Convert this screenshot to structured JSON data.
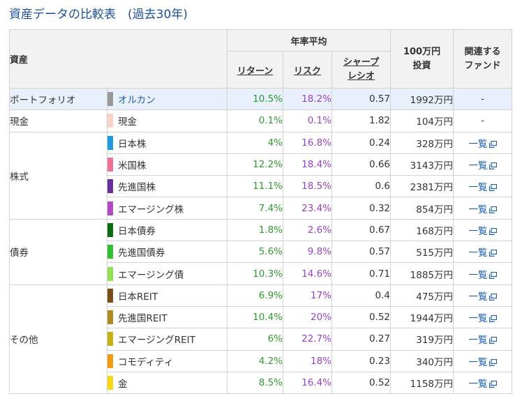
{
  "title": "資産データの比較表　(過去30年)",
  "header": {
    "asset": "資産",
    "annual_avg": "年率平均",
    "return": "リターン",
    "risk": "リスク",
    "sharpe_l1": "シャープ",
    "sharpe_l2": "レシオ",
    "invest_l1": "100万円",
    "invest_l2": "投資",
    "fund_l1": "関連する",
    "fund_l2": "ファンド"
  },
  "rows": [
    {
      "group": "ポートフォリオ",
      "name": "オルカン",
      "color": "#999999",
      "ret": "10.5%",
      "risk": "18.2%",
      "sharpe": "0.57",
      "invest": "1992万円",
      "fund": "-"
    },
    {
      "group": "現金",
      "name": "現金",
      "color": "#f8d4c8",
      "ret": "0.1%",
      "risk": "0.1%",
      "sharpe": "1.82",
      "invest": "104万円",
      "fund": "-"
    },
    {
      "group": "株式",
      "name": "日本株",
      "color": "#1e9be0",
      "ret": "4%",
      "risk": "16.8%",
      "sharpe": "0.24",
      "invest": "328万円",
      "fund": "一覧"
    },
    {
      "group": "",
      "name": "米国株",
      "color": "#f07098",
      "ret": "12.2%",
      "risk": "18.4%",
      "sharpe": "0.66",
      "invest": "3143万円",
      "fund": "一覧"
    },
    {
      "group": "",
      "name": "先進国株",
      "color": "#6a2c9e",
      "ret": "11.1%",
      "risk": "18.5%",
      "sharpe": "0.6",
      "invest": "2381万円",
      "fund": "一覧"
    },
    {
      "group": "",
      "name": "エマージング株",
      "color": "#b04cc0",
      "ret": "7.4%",
      "risk": "23.4%",
      "sharpe": "0.32",
      "invest": "854万円",
      "fund": "一覧"
    },
    {
      "group": "債券",
      "name": "日本債券",
      "color": "#0e6a10",
      "ret": "1.8%",
      "risk": "2.6%",
      "sharpe": "0.67",
      "invest": "168万円",
      "fund": "一覧"
    },
    {
      "group": "",
      "name": "先進国債券",
      "color": "#2ec02e",
      "ret": "5.6%",
      "risk": "9.8%",
      "sharpe": "0.57",
      "invest": "515万円",
      "fund": "一覧"
    },
    {
      "group": "",
      "name": "エマージング債",
      "color": "#90e050",
      "ret": "10.3%",
      "risk": "14.6%",
      "sharpe": "0.71",
      "invest": "1885万円",
      "fund": "一覧"
    },
    {
      "group": "その他",
      "name": "日本REIT",
      "color": "#7a4a18",
      "ret": "6.9%",
      "risk": "17%",
      "sharpe": "0.4",
      "invest": "475万円",
      "fund": "一覧"
    },
    {
      "group": "",
      "name": "先進国REIT",
      "color": "#b08820",
      "ret": "10.4%",
      "risk": "20%",
      "sharpe": "0.52",
      "invest": "1944万円",
      "fund": "一覧"
    },
    {
      "group": "",
      "name": "エマージングREIT",
      "color": "#c8b010",
      "ret": "6%",
      "risk": "22.7%",
      "sharpe": "0.27",
      "invest": "319万円",
      "fund": "一覧"
    },
    {
      "group": "",
      "name": "コモディティ",
      "color": "#f59a10",
      "ret": "4.2%",
      "risk": "18%",
      "sharpe": "0.23",
      "invest": "340万円",
      "fund": "一覧"
    },
    {
      "group": "",
      "name": "金",
      "color": "#f8d810",
      "ret": "8.5%",
      "risk": "16.4%",
      "sharpe": "0.52",
      "invest": "1158万円",
      "fund": "一覧"
    }
  ]
}
